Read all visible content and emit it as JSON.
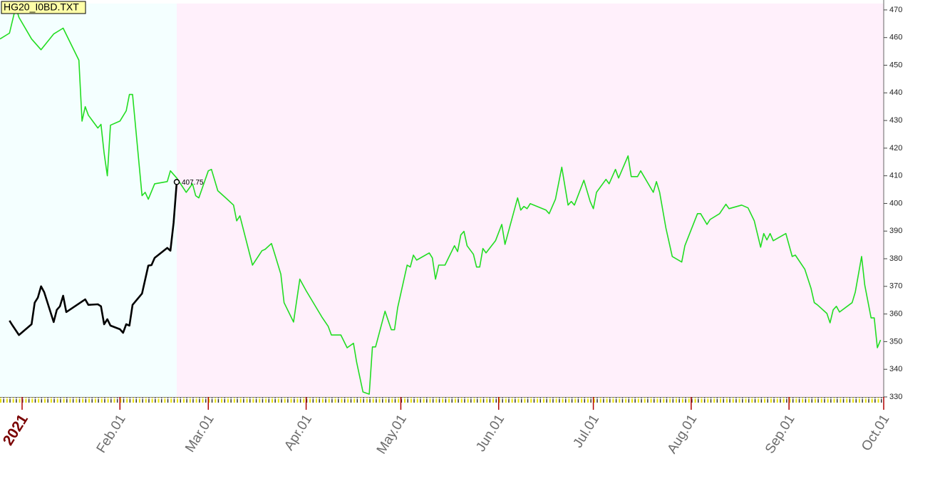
{
  "chart_data": {
    "type": "line",
    "title": "HG20_I0BD.TXT",
    "xlim": [
      "2020-12-25",
      "2021-10-01"
    ],
    "ylim": [
      330,
      472.3
    ],
    "yticks": [
      330,
      340,
      350,
      360,
      370,
      380,
      390,
      400,
      410,
      420,
      430,
      440,
      450,
      460,
      470
    ],
    "xticks": [
      {
        "value": "2021-01-01",
        "label": "2021"
      },
      {
        "value": "2021-02-01",
        "label": "Feb.01"
      },
      {
        "value": "2021-03-01",
        "label": "Mar.01"
      },
      {
        "value": "2021-04-01",
        "label": "Apr.01"
      },
      {
        "value": "2021-05-01",
        "label": "May.01"
      },
      {
        "value": "2021-06-01",
        "label": "Jun.01"
      },
      {
        "value": "2021-07-01",
        "label": "Jul.01"
      },
      {
        "value": "2021-08-01",
        "label": "Aug.01"
      },
      {
        "value": "2021-09-01",
        "label": "Sep.01"
      },
      {
        "value": "2021-10-01",
        "label": "Oct.01"
      }
    ],
    "split_date": "2021-02-19",
    "background_colors": [
      "#f4ffff",
      "#fff0fb"
    ],
    "series": [
      {
        "color": "#22dd22",
        "x": [
          "2020-12-25",
          "2020-12-28",
          "2020-12-30",
          "2020-12-31",
          "2021-01-04",
          "2021-01-07",
          "2021-01-11",
          "2021-01-14",
          "2021-01-19",
          "2021-01-20",
          "2021-01-21",
          "2021-01-22",
          "2021-01-25",
          "2021-01-26",
          "2021-01-27",
          "2021-01-28",
          "2021-01-29",
          "2021-02-01",
          "2021-02-03",
          "2021-02-04",
          "2021-02-05",
          "2021-02-08",
          "2021-02-09",
          "2021-02-10",
          "2021-02-12",
          "2021-02-16",
          "2021-02-17",
          "2021-02-19",
          "2021-02-22",
          "2021-02-24",
          "2021-02-25",
          "2021-02-26",
          "2021-03-01",
          "2021-03-02",
          "2021-03-04",
          "2021-03-07",
          "2021-03-09",
          "2021-03-10",
          "2021-03-11",
          "2021-03-15",
          "2021-03-18",
          "2021-03-19",
          "2021-03-21",
          "2021-03-22",
          "2021-03-24",
          "2021-03-25",
          "2021-03-28",
          "2021-03-30",
          "2021-04-01",
          "2021-04-06",
          "2021-04-08",
          "2021-04-09",
          "2021-04-12",
          "2021-04-14",
          "2021-04-16",
          "2021-04-17",
          "2021-04-19",
          "2021-04-21",
          "2021-04-22",
          "2021-04-23",
          "2021-04-26",
          "2021-04-28",
          "2021-04-29",
          "2021-04-30",
          "2021-05-03",
          "2021-05-04",
          "2021-05-05",
          "2021-05-06",
          "2021-05-10",
          "2021-05-11",
          "2021-05-12",
          "2021-05-13",
          "2021-05-15",
          "2021-05-18",
          "2021-05-19",
          "2021-05-20",
          "2021-05-21",
          "2021-05-22",
          "2021-05-24",
          "2021-05-25",
          "2021-05-26",
          "2021-05-27",
          "2021-05-28",
          "2021-05-31",
          "2021-06-02",
          "2021-06-03",
          "2021-06-07",
          "2021-06-08",
          "2021-06-09",
          "2021-06-10",
          "2021-06-11",
          "2021-06-16",
          "2021-06-17",
          "2021-06-19",
          "2021-06-21",
          "2021-06-23",
          "2021-06-24",
          "2021-06-25",
          "2021-06-28",
          "2021-06-30",
          "2021-07-01",
          "2021-07-02",
          "2021-07-05",
          "2021-07-06",
          "2021-07-08",
          "2021-07-09",
          "2021-07-12",
          "2021-07-13",
          "2021-07-15",
          "2021-07-16",
          "2021-07-20",
          "2021-07-21",
          "2021-07-22",
          "2021-07-24",
          "2021-07-26",
          "2021-07-29",
          "2021-07-30",
          "2021-08-03",
          "2021-08-04",
          "2021-08-06",
          "2021-08-07",
          "2021-08-10",
          "2021-08-12",
          "2021-08-13",
          "2021-08-17",
          "2021-08-19",
          "2021-08-21",
          "2021-08-23",
          "2021-08-24",
          "2021-08-25",
          "2021-08-26",
          "2021-08-27",
          "2021-08-31",
          "2021-09-02",
          "2021-09-03",
          "2021-09-06",
          "2021-09-08",
          "2021-09-09",
          "2021-09-10",
          "2021-09-13",
          "2021-09-14",
          "2021-09-15",
          "2021-09-16",
          "2021-09-17",
          "2021-09-21",
          "2021-09-22",
          "2021-09-24",
          "2021-09-25",
          "2021-09-27",
          "2021-09-28",
          "2021-09-29",
          "2021-09-30"
        ],
        "values": [
          459.5,
          461.6,
          471.1,
          467.3,
          459.5,
          455.6,
          461.3,
          463.4,
          451.8,
          429.8,
          435.0,
          431.9,
          427.3,
          428.6,
          418.2,
          410.0,
          428.3,
          429.8,
          433.5,
          439.4,
          439.4,
          402.8,
          404.0,
          401.5,
          407.1,
          407.9,
          411.8,
          409.2,
          404.0,
          407.1,
          402.8,
          402.0,
          411.8,
          412.3,
          404.6,
          401.5,
          399.4,
          393.7,
          395.5,
          377.7,
          382.9,
          383.4,
          385.5,
          381.9,
          374.4,
          364.1,
          357.1,
          372.6,
          368.4,
          358.9,
          355.5,
          352.4,
          352.4,
          347.8,
          349.4,
          342.6,
          331.8,
          331.0,
          348.1,
          348.1,
          361.0,
          354.3,
          354.3,
          362.3,
          377.7,
          377.0,
          381.3,
          379.5,
          382.1,
          380.3,
          372.6,
          377.7,
          377.7,
          384.7,
          382.6,
          388.6,
          389.9,
          384.7,
          381.6,
          377.0,
          377.0,
          383.7,
          382.1,
          386.5,
          392.4,
          385.2,
          402.0,
          397.6,
          398.9,
          398.1,
          399.9,
          397.6,
          396.3,
          401.5,
          413.1,
          399.4,
          400.7,
          399.4,
          408.4,
          400.7,
          398.1,
          404.0,
          408.7,
          407.1,
          412.3,
          409.2,
          417.2,
          409.7,
          409.7,
          411.8,
          404.0,
          407.9,
          404.0,
          391.1,
          380.8,
          378.8,
          384.7,
          396.3,
          396.3,
          392.4,
          394.2,
          396.3,
          399.7,
          398.1,
          399.4,
          398.4,
          393.7,
          384.2,
          389.1,
          386.8,
          389.1,
          386.5,
          389.1,
          380.8,
          381.3,
          376.2,
          369.2,
          364.1,
          363.3,
          360.2,
          356.8,
          361.5,
          362.8,
          360.7,
          364.1,
          367.9,
          380.8,
          370.5,
          358.6,
          358.6,
          347.8,
          350.6
        ]
      },
      {
        "color": "#000000",
        "x": [
          "2020-12-28",
          "2020-12-29",
          "2020-12-31",
          "2021-01-04",
          "2021-01-05",
          "2021-01-06",
          "2021-01-07",
          "2021-01-08",
          "2021-01-11",
          "2021-01-12",
          "2021-01-13",
          "2021-01-14",
          "2021-01-15",
          "2021-01-21",
          "2021-01-22",
          "2021-01-25",
          "2021-01-26",
          "2021-01-27",
          "2021-01-28",
          "2021-01-29",
          "2021-02-01",
          "2021-02-02",
          "2021-02-03",
          "2021-02-04",
          "2021-02-05",
          "2021-02-08",
          "2021-02-10",
          "2021-02-11",
          "2021-02-12",
          "2021-02-16",
          "2021-02-17",
          "2021-02-18",
          "2021-02-19"
        ],
        "values": [
          357.6,
          355.8,
          352.4,
          356.3,
          364.1,
          365.9,
          370.0,
          367.9,
          357.1,
          361.5,
          362.8,
          366.6,
          360.7,
          365.3,
          363.3,
          363.5,
          362.8,
          356.3,
          358.1,
          355.8,
          354.5,
          353.2,
          356.3,
          355.8,
          363.3,
          367.4,
          377.5,
          377.7,
          380.3,
          383.9,
          382.9,
          393.0,
          407.75
        ]
      }
    ]
  }
}
